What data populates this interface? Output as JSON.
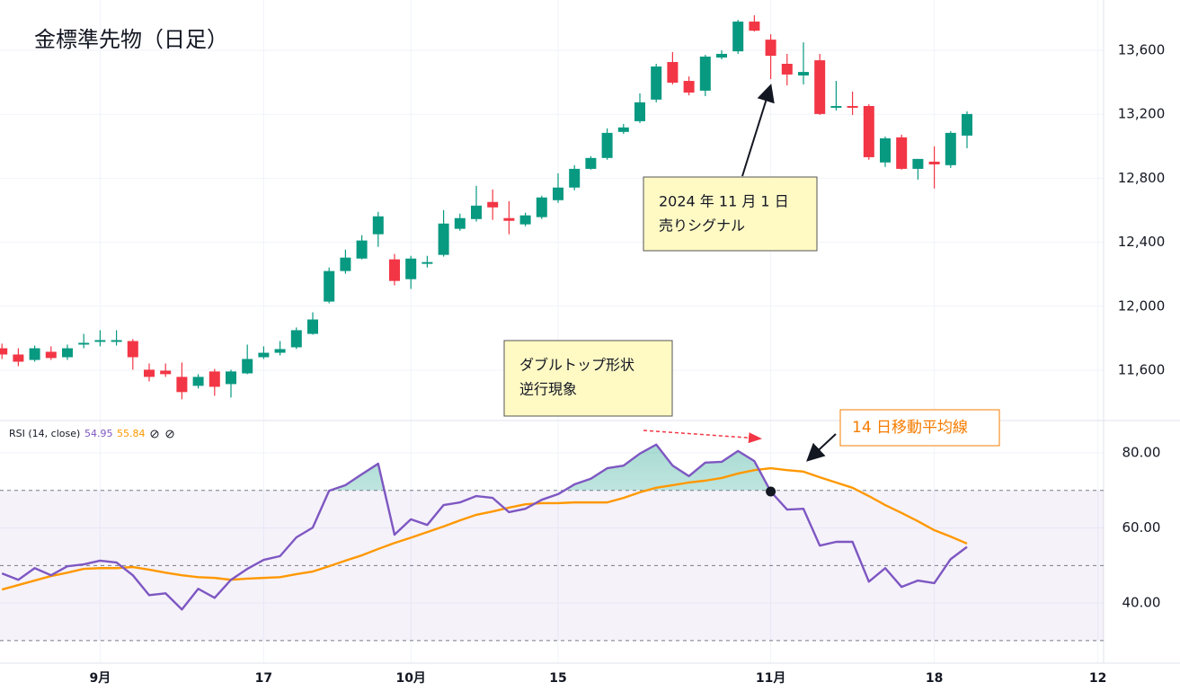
{
  "chart_data": [
    {
      "type": "candlestick",
      "title": "金標準先物（日足）",
      "open": [
        11737,
        11698,
        11664,
        11715,
        11681,
        11760,
        11777,
        11777,
        11782,
        11603,
        11597,
        11558,
        11502,
        11592,
        11513,
        11580,
        11681,
        11709,
        11743,
        11827,
        12029,
        12220,
        12298,
        12450,
        12293,
        12169,
        12265,
        12321,
        12484,
        12545,
        12652,
        12551,
        12512,
        12557,
        12663,
        12742,
        12859,
        12927,
        13090,
        13157,
        13292,
        13527,
        13409,
        13348,
        13555,
        13594,
        13780,
        13667,
        13516,
        13443,
        13538,
        13241,
        13252,
        13252,
        12899,
        13056,
        12859,
        12904,
        12882,
        13067,
        null,
        null,
        null,
        null,
        null,
        null,
        null,
        null
      ],
      "high": [
        11766,
        11737,
        11754,
        11749,
        11760,
        11827,
        11850,
        11850,
        11794,
        11642,
        11642,
        11648,
        11575,
        11608,
        11603,
        11760,
        11749,
        11782,
        11867,
        11962,
        12242,
        12354,
        12444,
        12590,
        12327,
        12315,
        12315,
        12601,
        12579,
        12753,
        12730,
        12657,
        12585,
        12691,
        12831,
        12882,
        12938,
        13112,
        13140,
        13331,
        13516,
        13589,
        13437,
        13572,
        13600,
        13791,
        13819,
        13701,
        13578,
        13650,
        13578,
        13409,
        13342,
        13263,
        13061,
        13073,
        12921,
        13000,
        13095,
        13219,
        null,
        null,
        null,
        null,
        null,
        null,
        null,
        null
      ],
      "low": [
        11670,
        11625,
        11653,
        11664,
        11664,
        11737,
        11749,
        11754,
        11603,
        11530,
        11558,
        11418,
        11485,
        11440,
        11429,
        11575,
        11670,
        11692,
        11732,
        11822,
        12018,
        12203,
        12293,
        12371,
        12130,
        12108,
        12242,
        12310,
        12472,
        12529,
        12540,
        12450,
        12500,
        12545,
        12646,
        12725,
        12854,
        12916,
        13078,
        13146,
        13275,
        13387,
        13319,
        13314,
        13544,
        13578,
        13718,
        13420,
        13381,
        13387,
        13196,
        13224,
        13196,
        12916,
        12871,
        12854,
        12792,
        12736,
        12865,
        12988,
        null,
        null,
        null,
        null,
        null,
        null,
        null,
        null
      ],
      "close": [
        11698,
        11653,
        11737,
        11676,
        11737,
        11771,
        11788,
        11788,
        11681,
        11558,
        11575,
        11463,
        11558,
        11496,
        11592,
        11670,
        11709,
        11732,
        11850,
        11917,
        12220,
        12304,
        12411,
        12562,
        12158,
        12298,
        12276,
        12517,
        12551,
        12629,
        12618,
        12534,
        12568,
        12680,
        12742,
        12859,
        12927,
        13084,
        13118,
        13275,
        13499,
        13398,
        13336,
        13561,
        13578,
        13780,
        13723,
        13566,
        13449,
        13465,
        13202,
        13252,
        13241,
        12932,
        13050,
        12859,
        12921,
        12887,
        13084,
        13202,
        null,
        null,
        null,
        null,
        null,
        null,
        null,
        null
      ],
      "up_color": "#089981",
      "down_color": "#f23645",
      "ylim": [
        11285,
        13915
      ],
      "yticks": [
        {
          "value": 11600,
          "label": "11,600"
        },
        {
          "value": 12000,
          "label": "12,000"
        },
        {
          "value": 12400,
          "label": "12,400"
        },
        {
          "value": 12800,
          "label": "12,800"
        },
        {
          "value": 13200,
          "label": "13,200"
        },
        {
          "value": 13600,
          "label": "13,600"
        }
      ],
      "grid": true,
      "annotations": [
        {
          "lines": [
            "2024 年 11 月 1 日",
            "売りシグナル"
          ]
        },
        {
          "lines": [
            "ダブルトップ形状",
            "逆行現象"
          ]
        }
      ]
    },
    {
      "type": "line",
      "legend_title": "RSI (14, close)",
      "categories": [
        null,
        null,
        null,
        null,
        null,
        null,
        "9月",
        null,
        null,
        null,
        null,
        null,
        null,
        null,
        null,
        null,
        "17",
        null,
        null,
        null,
        null,
        null,
        null,
        null,
        null,
        "10月",
        null,
        null,
        null,
        null,
        null,
        null,
        null,
        null,
        "15",
        null,
        null,
        null,
        null,
        null,
        null,
        null,
        null,
        null,
        null,
        null,
        null,
        "11月",
        null,
        null,
        null,
        null,
        null,
        null,
        null,
        null,
        null,
        "18",
        null,
        null,
        null,
        null,
        null,
        null,
        null,
        null,
        null,
        "12"
      ],
      "series": [
        {
          "color": "#7e57c2",
          "values": [
            47.9,
            46.2,
            49.3,
            47.4,
            49.8,
            50.3,
            51.3,
            50.8,
            47.4,
            42.1,
            42.6,
            38.3,
            43.8,
            41.4,
            46.2,
            49.1,
            51.5,
            52.5,
            57.5,
            60.1,
            69.9,
            71.4,
            74.3,
            77.1,
            58.2,
            62.3,
            60.8,
            66.1,
            66.8,
            68.5,
            68.0,
            64.2,
            65.1,
            67.5,
            69.0,
            71.6,
            73.1,
            75.9,
            76.6,
            79.8,
            82.2,
            76.6,
            73.8,
            77.4,
            77.6,
            80.5,
            77.8,
            69.7,
            64.9,
            65.1,
            55.3,
            56.3,
            56.3,
            45.7,
            49.3,
            44.3,
            46.0,
            45.3,
            51.7,
            54.95,
            null,
            null,
            null,
            null,
            null,
            null,
            null,
            null
          ]
        },
        {
          "color": "#ff9800",
          "values": [
            43.6,
            44.8,
            46.0,
            47.2,
            48.1,
            49.1,
            49.3,
            49.3,
            49.6,
            48.9,
            48.1,
            47.4,
            46.9,
            46.7,
            46.2,
            46.5,
            46.7,
            46.9,
            47.7,
            48.4,
            49.8,
            51.3,
            52.7,
            54.4,
            56.0,
            57.4,
            58.9,
            60.4,
            62.0,
            63.5,
            64.4,
            65.4,
            66.3,
            66.6,
            66.6,
            66.8,
            66.8,
            66.8,
            68.0,
            69.5,
            70.7,
            71.4,
            72.1,
            72.6,
            73.3,
            74.5,
            75.4,
            75.9,
            75.4,
            75.0,
            73.5,
            72.1,
            70.7,
            68.5,
            66.1,
            64.0,
            61.8,
            59.4,
            57.7,
            55.84,
            null,
            null,
            null,
            null,
            null,
            null,
            null,
            null
          ]
        }
      ],
      "ylim": [
        24,
        88.6
      ],
      "yticks": [
        {
          "value": 40,
          "label": "40.00"
        },
        {
          "value": 60,
          "label": "60.00"
        },
        {
          "value": 80,
          "label": "80.00"
        }
      ],
      "band_levels": [
        30,
        50,
        70
      ],
      "grid": true,
      "annotations": [
        {
          "lines": [
            "14 日移動平均線"
          ]
        }
      ]
    }
  ]
}
